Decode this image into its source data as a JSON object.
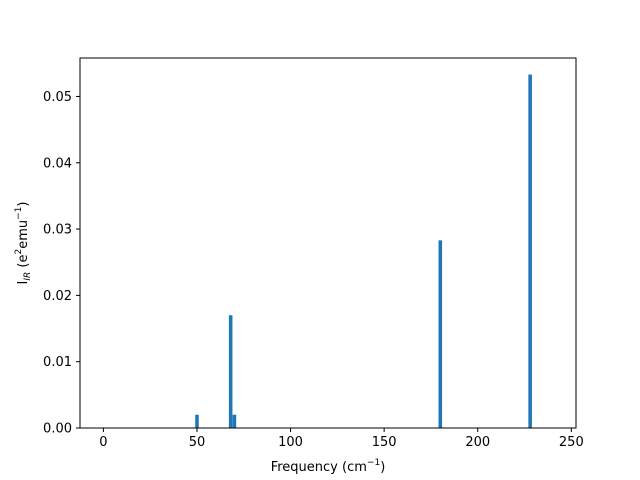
{
  "chart_data": {
    "type": "bar",
    "x": [
      50,
      68,
      70,
      180,
      228
    ],
    "values": [
      0.002,
      0.017,
      0.002,
      0.0283,
      0.0533
    ],
    "bar_color": "#1f77b4",
    "xlim": [
      -12.5,
      252.5
    ],
    "ylim": [
      0,
      0.0558
    ],
    "xticks": [
      0,
      50,
      100,
      150,
      200,
      250
    ],
    "xtick_labels": [
      "0",
      "50",
      "100",
      "150",
      "200",
      "250"
    ],
    "yticks": [
      0,
      0.01,
      0.02,
      0.03,
      0.04,
      0.05
    ],
    "ytick_labels": [
      "0.00",
      "0.01",
      "0.02",
      "0.03",
      "0.04",
      "0.05"
    ],
    "xlabel": {
      "main": "Frequency (cm",
      "sup": "−1",
      "tail": ")"
    },
    "ylabel": {
      "main": "I",
      "sub": "IR",
      "mid": " (e",
      "sup1": "2",
      "mid2": "emu",
      "sup2": "−1",
      "tail": ")"
    },
    "grid": false,
    "title": ""
  }
}
